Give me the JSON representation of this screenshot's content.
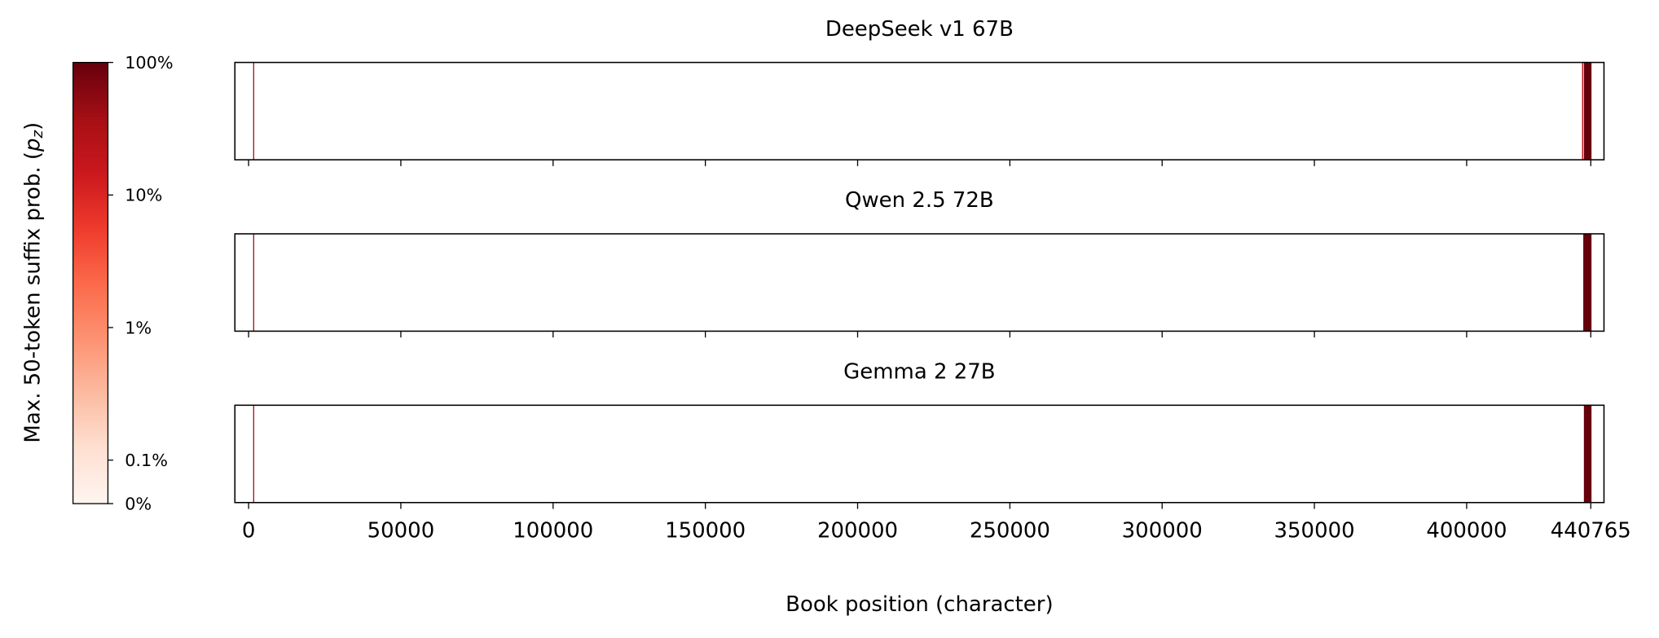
{
  "chart_data": {
    "type": "heatmap",
    "xlabel": "Book position (character)",
    "xlim": [
      -4500,
      445100
    ],
    "xticks": [
      0,
      50000,
      100000,
      150000,
      200000,
      250000,
      300000,
      350000,
      400000,
      440765
    ],
    "colormap": "Reds",
    "colorbar": {
      "label": [
        "Max. 50-token suffix prob. (",
        "p",
        "z",
        ")"
      ],
      "lim": [
        0,
        100
      ],
      "ticks": [
        {
          "value": 100,
          "label": "100%"
        },
        {
          "value": 10,
          "label": "10%"
        },
        {
          "value": 1,
          "label": "1%"
        },
        {
          "value": 0.1,
          "label": "0.1%"
        },
        {
          "value": 0,
          "label": "0%"
        }
      ]
    },
    "panels": [
      {
        "title": "DeepSeek v1 67B",
        "x_start": [
          1500,
          437900,
          438500
        ],
        "x_end": [
          1800,
          438300,
          441000
        ],
        "values": [
          40,
          20,
          100
        ]
      },
      {
        "title": "Qwen 2.5 72B",
        "x_start": [
          1500,
          438300
        ],
        "x_end": [
          1800,
          441000
        ],
        "values": [
          40,
          100
        ]
      },
      {
        "title": "Gemma 2 27B",
        "x_start": [
          1500,
          438500
        ],
        "x_end": [
          1800,
          441000
        ],
        "values": [
          40,
          100
        ]
      }
    ]
  }
}
